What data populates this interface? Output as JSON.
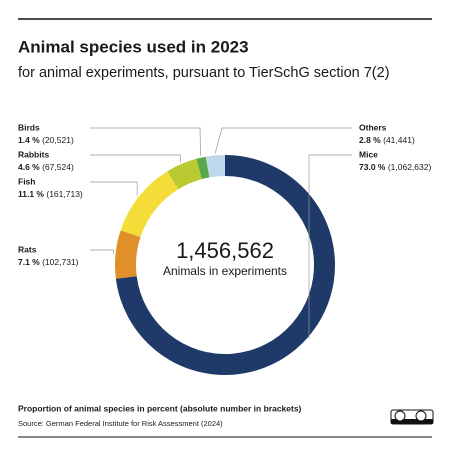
{
  "chart_data": {
    "type": "pie",
    "title": "Animal species used in 2023",
    "subtitle": "for animal experiments, pursuant to TierSchG section 7(2)",
    "categories": [
      "Mice",
      "Rats",
      "Fish",
      "Rabbits",
      "Birds",
      "Others"
    ],
    "values": [
      73.0,
      7.1,
      11.1,
      4.6,
      1.4,
      2.8
    ],
    "value_labels": [
      "73.0 %",
      "7.1 %",
      "11.1  %",
      "4.6 %",
      "1.4 %",
      "2.8 %"
    ],
    "count_labels": [
      "(1,062,632)",
      "(102,731)",
      "(161,713)",
      "(67,524)",
      "(20,521)",
      "(41,441)"
    ],
    "colors": [
      "#1f3a68",
      "#e0902a",
      "#f4dd38",
      "#b9ca32",
      "#5aa84a",
      "#bdd7ec"
    ],
    "center_value": "1,456,562",
    "center_label": "Animals in experiments",
    "note": "Proportion of animal species in percent (absolute number in brackets)",
    "source": "Source: German Federal Institute for Risk Assessment (2024)"
  }
}
